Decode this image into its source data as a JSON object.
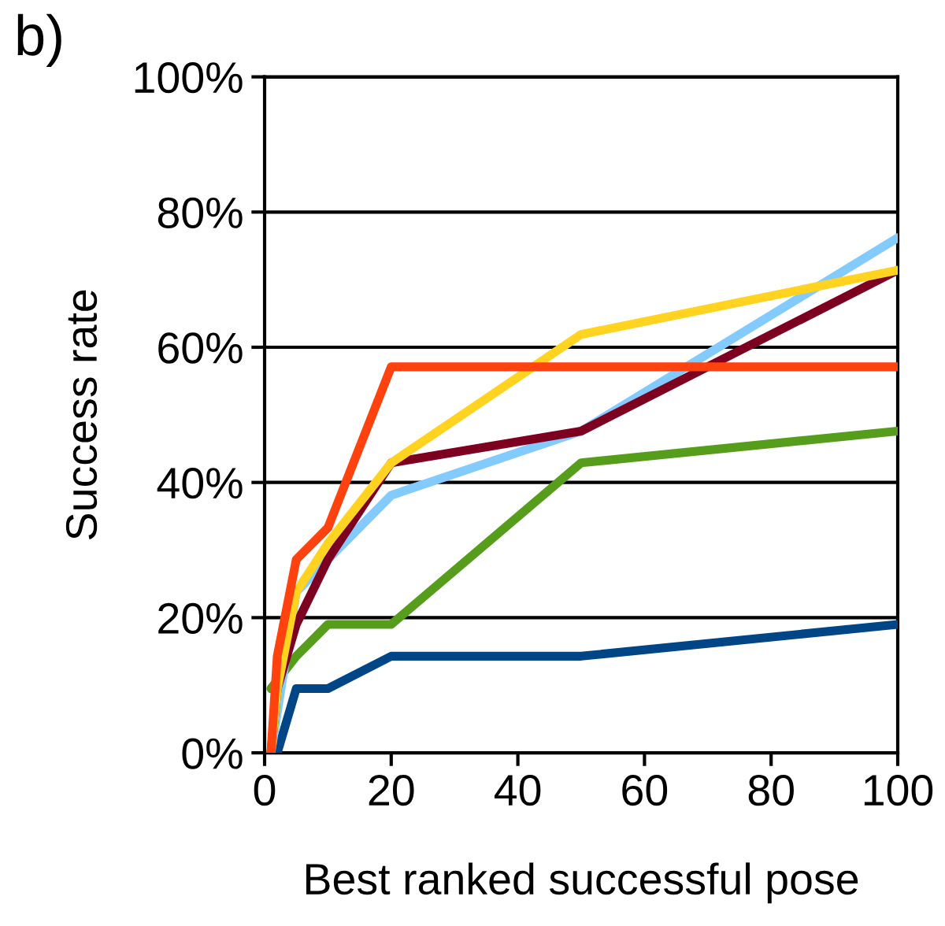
{
  "chart_data": {
    "type": "line",
    "title": "b)",
    "xlabel": "Best ranked successful pose",
    "ylabel": "Success rate",
    "xlim": [
      0,
      100
    ],
    "xticks": [
      0,
      20,
      40,
      60,
      80,
      100
    ],
    "ylim": [
      0,
      100
    ],
    "yticks": [
      {
        "value": 0,
        "label": "0%"
      },
      {
        "value": 20,
        "label": "20%"
      },
      {
        "value": 40,
        "label": "40%"
      },
      {
        "value": 60,
        "label": "60%"
      },
      {
        "value": 80,
        "label": "80%"
      },
      {
        "value": 100,
        "label": "100%"
      }
    ],
    "grid": "y",
    "marker": "none",
    "line_style": "solid",
    "series": [
      {
        "color": "#004586",
        "x": [
          1,
          2,
          5,
          10,
          20,
          50,
          100
        ],
        "values": [
          0,
          0,
          9.5,
          9.5,
          14.3,
          14.3,
          19.0
        ]
      },
      {
        "color": "#579d1c",
        "x": [
          1,
          5,
          10,
          20,
          50,
          100
        ],
        "values": [
          9.5,
          14.3,
          19.0,
          19.0,
          42.9,
          47.6
        ]
      },
      {
        "color": "#83caff",
        "x": [
          1,
          5,
          10,
          20,
          50,
          100
        ],
        "values": [
          0,
          23.8,
          28.6,
          38.1,
          47.6,
          76.2
        ]
      },
      {
        "color": "#7e0021",
        "x": [
          1,
          2,
          5,
          10,
          20,
          50,
          100
        ],
        "values": [
          0,
          9.5,
          19.0,
          28.6,
          42.9,
          47.6,
          71.4
        ]
      },
      {
        "color": "#ffd320",
        "x": [
          1,
          2,
          5,
          10,
          20,
          50,
          100
        ],
        "values": [
          0,
          9.5,
          23.8,
          31.0,
          42.9,
          61.9,
          71.4
        ]
      },
      {
        "color": "#ff420e",
        "x": [
          1,
          2,
          5,
          10,
          20,
          50,
          100
        ],
        "values": [
          0,
          14.3,
          28.6,
          33.3,
          57.1,
          57.1,
          57.1
        ]
      }
    ]
  }
}
